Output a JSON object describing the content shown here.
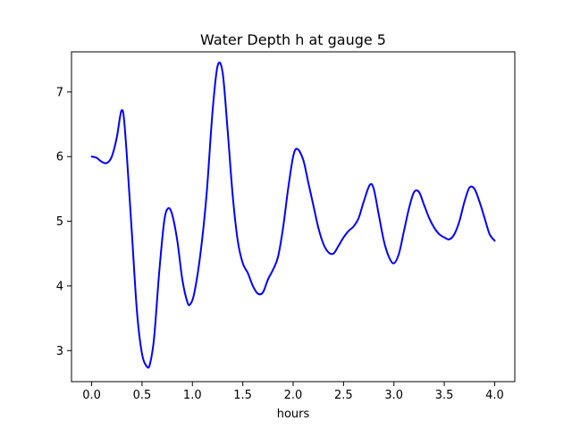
{
  "chart_data": {
    "type": "line",
    "title": "Water Depth h at gauge 5",
    "xlabel": "hours",
    "ylabel": "",
    "xlim": [
      -0.2,
      4.2
    ],
    "ylim": [
      2.52,
      7.62
    ],
    "xticks": [
      0.0,
      0.5,
      1.0,
      1.5,
      2.0,
      2.5,
      3.0,
      3.5,
      4.0
    ],
    "xtick_labels": [
      "0.0",
      "0.5",
      "1.0",
      "1.5",
      "2.0",
      "2.5",
      "3.0",
      "3.5",
      "4.0"
    ],
    "yticks": [
      3,
      4,
      5,
      6,
      7
    ],
    "ytick_labels": [
      "3",
      "4",
      "5",
      "6",
      "7"
    ],
    "grid": false,
    "series": [
      {
        "color": "#0000ff",
        "x": [
          0.0,
          0.05,
          0.1,
          0.15,
          0.2,
          0.25,
          0.28,
          0.3,
          0.32,
          0.35,
          0.4,
          0.45,
          0.5,
          0.55,
          0.58,
          0.62,
          0.67,
          0.72,
          0.76,
          0.8,
          0.85,
          0.9,
          0.95,
          0.98,
          1.02,
          1.08,
          1.14,
          1.2,
          1.25,
          1.3,
          1.35,
          1.4,
          1.45,
          1.5,
          1.55,
          1.6,
          1.65,
          1.7,
          1.75,
          1.8,
          1.85,
          1.9,
          1.95,
          2.0,
          2.04,
          2.1,
          2.15,
          2.2,
          2.25,
          2.3,
          2.35,
          2.4,
          2.45,
          2.5,
          2.55,
          2.6,
          2.65,
          2.7,
          2.76,
          2.8,
          2.85,
          2.9,
          2.95,
          3.0,
          3.05,
          3.1,
          3.15,
          3.2,
          3.25,
          3.3,
          3.35,
          3.4,
          3.45,
          3.5,
          3.55,
          3.6,
          3.65,
          3.7,
          3.75,
          3.8,
          3.85,
          3.9,
          3.95,
          4.0
        ],
        "y": [
          6.0,
          5.98,
          5.92,
          5.9,
          6.0,
          6.3,
          6.6,
          6.72,
          6.6,
          6.0,
          4.8,
          3.6,
          2.95,
          2.75,
          2.8,
          3.2,
          4.2,
          5.0,
          5.2,
          5.1,
          4.7,
          4.1,
          3.75,
          3.72,
          3.9,
          4.5,
          5.4,
          6.7,
          7.4,
          7.3,
          6.4,
          5.4,
          4.7,
          4.35,
          4.2,
          4.0,
          3.88,
          3.9,
          4.1,
          4.25,
          4.45,
          4.9,
          5.5,
          6.0,
          6.12,
          5.95,
          5.6,
          5.25,
          4.9,
          4.65,
          4.52,
          4.5,
          4.62,
          4.75,
          4.85,
          4.92,
          5.05,
          5.3,
          5.56,
          5.5,
          5.1,
          4.7,
          4.45,
          4.35,
          4.5,
          4.85,
          5.2,
          5.45,
          5.45,
          5.25,
          5.05,
          4.9,
          4.8,
          4.75,
          4.72,
          4.8,
          5.0,
          5.3,
          5.52,
          5.5,
          5.3,
          5.05,
          4.8,
          4.7
        ]
      }
    ]
  }
}
